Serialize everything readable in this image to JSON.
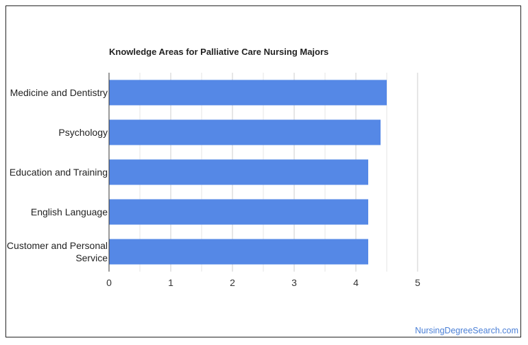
{
  "chart_data": {
    "type": "bar",
    "orientation": "horizontal",
    "title": "Knowledge Areas for Palliative Care Nursing Majors",
    "categories": [
      [
        "Medicine and Dentistry"
      ],
      [
        "Psychology"
      ],
      [
        "Education and Training"
      ],
      [
        "English Language"
      ],
      [
        "Customer and Personal",
        "Service"
      ]
    ],
    "values": [
      4.5,
      4.4,
      4.2,
      4.2,
      4.2
    ],
    "xlim": [
      0,
      5
    ],
    "xticks": [
      "0",
      "1",
      "2",
      "3",
      "4",
      "5"
    ],
    "grid": true,
    "bar_color": "#5588e6"
  },
  "footer": {
    "source": "NursingDegreeSearch.com"
  }
}
